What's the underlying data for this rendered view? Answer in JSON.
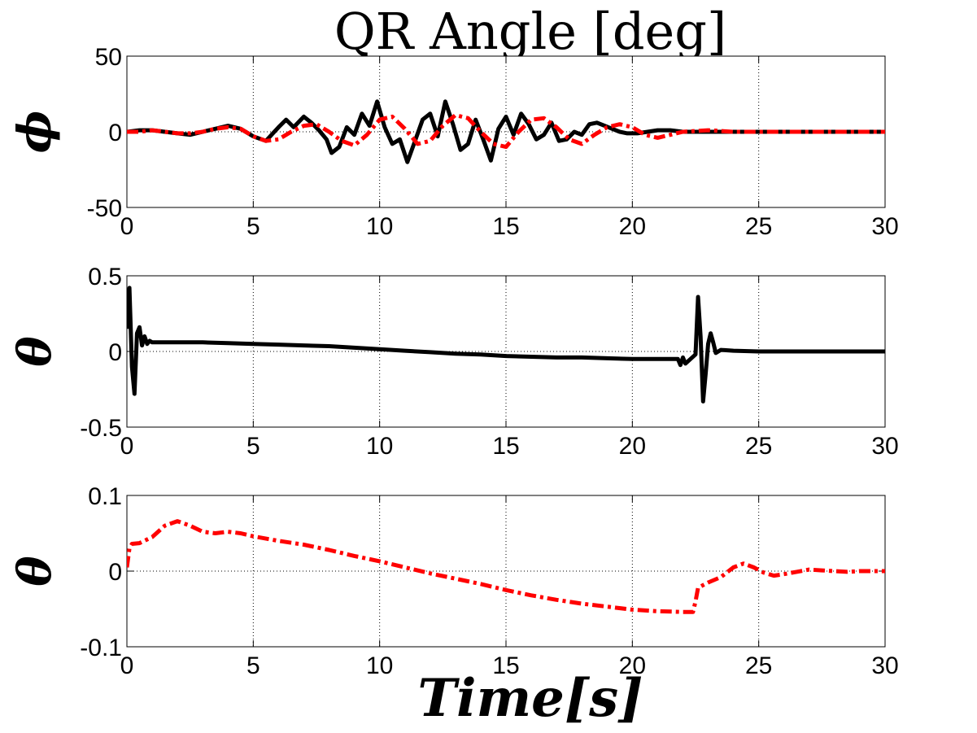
{
  "figure": {
    "title": "QR Angle [deg]",
    "xlabel": "Time[s]"
  },
  "chart_data": [
    {
      "type": "line",
      "ylabel": "ϕ",
      "xlim": [
        0,
        30
      ],
      "ylim": [
        -50,
        50
      ],
      "xticks": [
        "0",
        "5",
        "10",
        "15",
        "20",
        "25",
        "30"
      ],
      "yticks": [
        "-50",
        "0",
        "50"
      ],
      "grid": true,
      "series": [
        {
          "color": "#000000",
          "style": "solid",
          "x": [
            0,
            0.5,
            1,
            1.5,
            2,
            2.5,
            3,
            3.5,
            4,
            4.5,
            5,
            5.5,
            6,
            6.3,
            6.6,
            7,
            7.3,
            7.6,
            7.9,
            8.1,
            8.4,
            8.7,
            9,
            9.3,
            9.6,
            9.9,
            10.2,
            10.5,
            10.8,
            11.1,
            11.4,
            11.7,
            12,
            12.3,
            12.6,
            12.9,
            13.2,
            13.5,
            13.8,
            14.1,
            14.4,
            14.7,
            15,
            15.3,
            15.6,
            15.9,
            16.2,
            16.5,
            16.8,
            17.1,
            17.4,
            17.7,
            18,
            18.3,
            18.6,
            18.9,
            19.2,
            19.5,
            19.8,
            20.2,
            20.6,
            21,
            21.5,
            22,
            23,
            24,
            25,
            26,
            27,
            28,
            29,
            30
          ],
          "y": [
            0,
            1,
            1,
            0,
            -1,
            -2,
            0,
            2,
            4,
            2,
            -3,
            -6,
            3,
            8,
            3,
            10,
            6,
            1,
            -5,
            -14,
            -10,
            3,
            -2,
            12,
            4,
            20,
            3,
            -8,
            -5,
            -20,
            -6,
            8,
            12,
            -3,
            20,
            5,
            -12,
            -8,
            8,
            -5,
            -19,
            2,
            10,
            -2,
            12,
            5,
            -5,
            -2,
            6,
            -6,
            -5,
            0,
            -2,
            5,
            6,
            4,
            2,
            0,
            -1,
            -1,
            0,
            1,
            1,
            0,
            0,
            0,
            0,
            0,
            0,
            0,
            0,
            0
          ]
        },
        {
          "color": "#ff0000",
          "style": "dashdot",
          "x": [
            0,
            0.5,
            1,
            1.5,
            2,
            2.5,
            3,
            3.5,
            4,
            4.5,
            5,
            5.5,
            6,
            6.5,
            7,
            7.5,
            8,
            8.5,
            9,
            9.5,
            10,
            10.5,
            11,
            11.5,
            12,
            12.5,
            13,
            13.5,
            14,
            14.5,
            15,
            15.5,
            16,
            16.5,
            17,
            17.5,
            18,
            18.5,
            19,
            19.5,
            20,
            20.5,
            21,
            21.5,
            22,
            23,
            24,
            25,
            26,
            27,
            28,
            29,
            30
          ],
          "y": [
            0,
            0,
            1,
            0,
            -1,
            -1,
            0,
            2,
            3,
            2,
            -3,
            -6,
            -5,
            0,
            4,
            5,
            0,
            -6,
            -9,
            -2,
            8,
            10,
            2,
            -8,
            -6,
            4,
            11,
            9,
            0,
            -8,
            -10,
            0,
            8,
            9,
            3,
            -5,
            -8,
            -2,
            3,
            5,
            3,
            -2,
            -4,
            -2,
            0,
            1,
            0,
            0,
            0,
            0,
            0,
            0,
            0
          ]
        }
      ]
    },
    {
      "type": "line",
      "ylabel": "θ",
      "xlim": [
        0,
        30
      ],
      "ylim": [
        -0.5,
        0.5
      ],
      "xticks": [
        "0",
        "5",
        "10",
        "15",
        "20",
        "25",
        "30"
      ],
      "yticks": [
        "-0.5",
        "0",
        "0.5"
      ],
      "grid": true,
      "series": [
        {
          "color": "#000000",
          "style": "solid",
          "x": [
            0,
            0.1,
            0.2,
            0.3,
            0.4,
            0.5,
            0.6,
            0.7,
            0.8,
            0.9,
            1,
            2,
            3,
            4,
            5,
            6,
            7,
            8,
            9,
            10,
            11,
            12,
            13,
            14,
            15,
            16,
            17,
            18,
            19,
            20,
            21,
            21.8,
            21.9,
            22,
            22.1,
            22.3,
            22.5,
            22.6,
            22.7,
            22.8,
            22.9,
            23,
            23.1,
            23.2,
            23.3,
            23.5,
            24,
            25,
            26,
            27,
            28,
            29,
            30
          ],
          "y": [
            0.15,
            0.42,
            -0.1,
            -0.28,
            0.12,
            0.16,
            0.04,
            0.1,
            0.05,
            0.07,
            0.06,
            0.06,
            0.06,
            0.055,
            0.05,
            0.045,
            0.04,
            0.035,
            0.025,
            0.015,
            0.005,
            -0.005,
            -0.015,
            -0.02,
            -0.03,
            -0.035,
            -0.04,
            -0.04,
            -0.045,
            -0.05,
            -0.05,
            -0.05,
            -0.09,
            -0.04,
            -0.08,
            -0.05,
            -0.02,
            0.36,
            0.1,
            -0.33,
            -0.15,
            0.05,
            0.12,
            0.06,
            -0.01,
            0.01,
            0.005,
            0,
            0,
            0,
            0,
            0,
            0
          ]
        }
      ]
    },
    {
      "type": "line",
      "ylabel": "θ",
      "xlim": [
        0,
        30
      ],
      "ylim": [
        -0.1,
        0.1
      ],
      "xticks": [
        "0",
        "5",
        "10",
        "15",
        "20",
        "25",
        "30"
      ],
      "yticks": [
        "-0.1",
        "0",
        "0.1"
      ],
      "grid": true,
      "series": [
        {
          "color": "#ff0000",
          "style": "dashdot",
          "x": [
            0,
            0.1,
            0.2,
            0.5,
            1,
            1.5,
            2,
            2.5,
            3,
            3.5,
            4,
            4.5,
            5,
            6,
            7,
            8,
            9,
            10,
            11,
            12,
            13,
            14,
            15,
            16,
            17,
            18,
            19,
            20,
            21,
            22,
            22.4,
            22.5,
            22.6,
            23,
            23.5,
            24,
            24.4,
            24.8,
            25.2,
            25.6,
            26,
            26.5,
            27,
            27.5,
            28,
            28.5,
            29,
            30
          ],
          "y": [
            0.005,
            0.03,
            0.036,
            0.037,
            0.045,
            0.06,
            0.066,
            0.06,
            0.052,
            0.05,
            0.052,
            0.05,
            0.046,
            0.04,
            0.035,
            0.028,
            0.02,
            0.013,
            0.005,
            -0.003,
            -0.01,
            -0.017,
            -0.025,
            -0.032,
            -0.038,
            -0.043,
            -0.047,
            -0.051,
            -0.053,
            -0.054,
            -0.054,
            -0.04,
            -0.022,
            -0.015,
            -0.008,
            0.005,
            0.01,
            0.005,
            -0.002,
            -0.006,
            -0.004,
            -0.001,
            0.002,
            0.001,
            0,
            -0.001,
            0,
            0
          ]
        }
      ]
    }
  ]
}
